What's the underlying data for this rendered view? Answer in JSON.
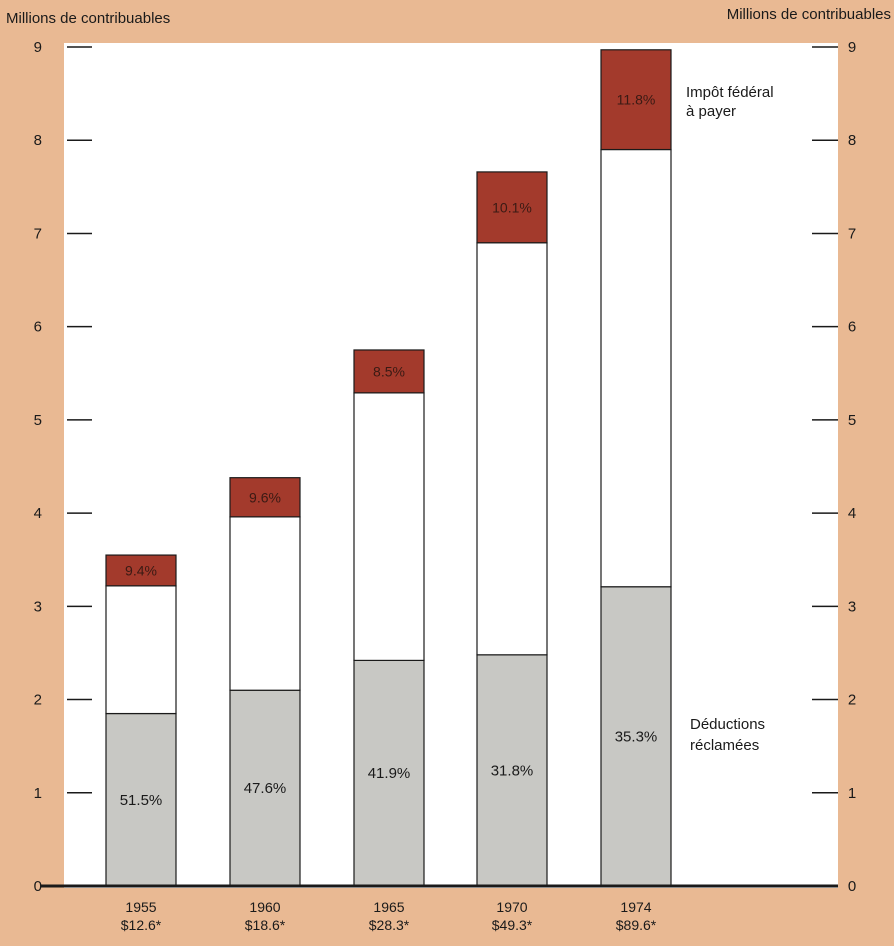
{
  "chart_data": {
    "type": "bar",
    "stacked": true,
    "categories": [
      "1955",
      "1960",
      "1965",
      "1970",
      "1974"
    ],
    "category_sublabels": [
      "$12.6*",
      "$18.6*",
      "$28.3*",
      "$49.3*",
      "$89.6*"
    ],
    "totals": [
      3.55,
      4.38,
      5.75,
      7.66,
      8.97
    ],
    "series": [
      {
        "name": "Déductions réclamées",
        "values": [
          1.85,
          2.1,
          2.42,
          2.48,
          3.21
        ],
        "labels": [
          "51.5%",
          "47.6%",
          "41.9%",
          "31.8%",
          "35.3%"
        ],
        "color": "#c8c8c4"
      },
      {
        "values": [
          1.37,
          1.86,
          2.87,
          4.42,
          4.69
        ],
        "color": "#ffffff"
      },
      {
        "name": "Impôt fédéral à payer",
        "values": [
          0.33,
          0.42,
          0.46,
          0.76,
          1.07
        ],
        "labels": [
          "9.4%",
          "9.6%",
          "8.5%",
          "10.1%",
          "11.8%"
        ],
        "color": "#a33a2c"
      }
    ],
    "ylabel_left": "Millions de contribuables",
    "ylabel_right": "Millions de contribuables",
    "ylim": [
      0,
      9
    ],
    "yticks": [
      0,
      1,
      2,
      3,
      4,
      5,
      6,
      7,
      8,
      9
    ],
    "legend": {
      "top_label_lines": [
        "Impôt fédéral",
        "à payer"
      ],
      "bottom_label_lines": [
        "Déductions",
        "réclamées"
      ]
    }
  }
}
